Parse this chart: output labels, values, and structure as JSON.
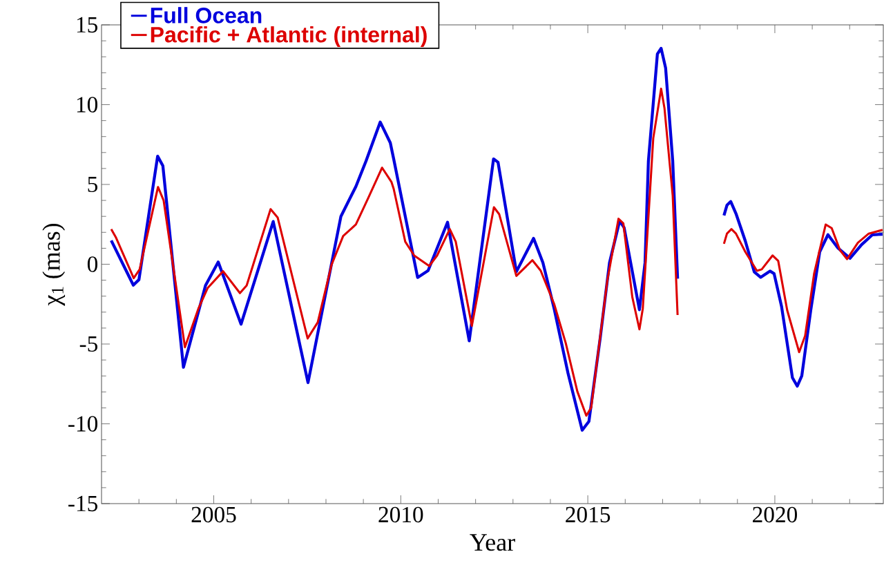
{
  "chart_data": {
    "type": "line",
    "xlabel": "Year",
    "ylabel": "χ$_{1}$ (mas)",
    "xlim": [
      2002,
      2022.9
    ],
    "ylim": [
      -15,
      15
    ],
    "xticks": [
      {
        "value": 2003,
        "label": null
      },
      {
        "value": 2004,
        "label": null
      },
      2005,
      {
        "value": 2006,
        "label": null
      },
      {
        "value": 2007,
        "label": null
      },
      {
        "value": 2008,
        "label": null
      },
      {
        "value": 2009,
        "label": null
      },
      2010,
      {
        "value": 2011,
        "label": null
      },
      {
        "value": 2012,
        "label": null
      },
      {
        "value": 2013,
        "label": null
      },
      {
        "value": 2014,
        "label": null
      },
      2015,
      {
        "value": 2016,
        "label": null
      },
      {
        "value": 2017,
        "label": null
      },
      {
        "value": 2018,
        "label": null
      },
      {
        "value": 2019,
        "label": null
      },
      2020,
      {
        "value": 2021,
        "label": null
      },
      {
        "value": 2022,
        "label": null
      }
    ],
    "yticks": [
      -15,
      {
        "value": -14,
        "label": null
      },
      {
        "value": -13,
        "label": null
      },
      {
        "value": -12,
        "label": null
      },
      {
        "value": -11,
        "label": null
      },
      -10,
      {
        "value": -9,
        "label": null
      },
      {
        "value": -8,
        "label": null
      },
      {
        "value": -7,
        "label": null
      },
      {
        "value": -6,
        "label": null
      },
      -5,
      {
        "value": -4,
        "label": null
      },
      {
        "value": -3,
        "label": null
      },
      {
        "value": -2,
        "label": null
      },
      {
        "value": -1,
        "label": null
      },
      0,
      {
        "value": 1,
        "label": null
      },
      {
        "value": 2,
        "label": null
      },
      {
        "value": 3,
        "label": null
      },
      {
        "value": 4,
        "label": null
      },
      5,
      {
        "value": 6,
        "label": null
      },
      {
        "value": 7,
        "label": null
      },
      {
        "value": 8,
        "label": null
      },
      {
        "value": 9,
        "label": null
      },
      10,
      {
        "value": 11,
        "label": null
      },
      {
        "value": 12,
        "label": null
      },
      {
        "value": 13,
        "label": null
      },
      {
        "value": 14,
        "label": null
      },
      15
    ],
    "legend": "top left",
    "series": [
      {
        "name": "Full Ocean",
        "color": "#0000dd",
        "x": [
          2002.26,
          2002.85,
          2003.0,
          2003.5,
          2003.64,
          2004.19,
          2004.78,
          2005.12,
          2005.73,
          2006.59,
          2007.52,
          2008.4,
          2008.8,
          2009.07,
          2009.45,
          2009.72,
          2009.81,
          2010.45,
          2010.73,
          2011.25,
          2011.83,
          2012.48,
          2012.6,
          2013.09,
          2013.55,
          2013.8,
          2014.1,
          2014.47,
          2014.85,
          2015.03,
          2015.33,
          2015.58,
          2015.85,
          2015.97,
          2016.38,
          2016.53,
          2016.62,
          2016.86,
          2016.96,
          2017.08,
          2017.27,
          2017.4,
          2018.0,
          2018.64,
          2018.72,
          2018.82,
          2018.96,
          2019.21,
          2019.45,
          2019.62,
          2019.87,
          2019.98,
          2020.18,
          2020.47,
          2020.6,
          2020.72,
          2020.96,
          2021.2,
          2021.42,
          2021.69,
          2022.01,
          2022.32,
          2022.61,
          2022.88
        ],
        "values": [
          1.49,
          -1.31,
          -0.97,
          6.77,
          6.17,
          -6.46,
          -1.33,
          0.14,
          -3.76,
          2.68,
          -7.42,
          3.0,
          4.87,
          6.46,
          8.91,
          7.61,
          6.6,
          -0.83,
          -0.4,
          2.63,
          -4.8,
          6.6,
          6.39,
          -0.47,
          1.62,
          0.1,
          -2.78,
          -6.82,
          -10.4,
          -9.85,
          -4.65,
          0.1,
          2.71,
          2.3,
          -2.85,
          0.1,
          6.46,
          13.17,
          13.53,
          12.3,
          6.47,
          -0.9,
          null,
          3.06,
          3.7,
          3.93,
          3.18,
          1.46,
          -0.48,
          -0.82,
          -0.43,
          -0.59,
          -2.65,
          -7.11,
          -7.64,
          -7.0,
          -2.88,
          0.78,
          1.85,
          1.01,
          0.37,
          1.23,
          1.85,
          1.88
        ]
      },
      {
        "name": "Pacific + Atlantic (internal)",
        "color": "#dd0000",
        "x": [
          2002.26,
          2002.38,
          2002.86,
          2003.02,
          2003.51,
          2003.66,
          2004.23,
          2004.59,
          2004.84,
          2005.25,
          2005.7,
          2005.88,
          2006.52,
          2006.71,
          2007.51,
          2007.78,
          2008.15,
          2008.46,
          2008.8,
          2009.13,
          2009.5,
          2009.75,
          2009.81,
          2010.12,
          2010.36,
          2010.76,
          2010.97,
          2011.31,
          2011.47,
          2011.9,
          2012.49,
          2012.63,
          2013.09,
          2013.52,
          2013.74,
          2014.1,
          2014.41,
          2014.72,
          2014.96,
          2015.09,
          2015.27,
          2015.52,
          2015.82,
          2015.95,
          2016.19,
          2016.38,
          2016.47,
          2016.75,
          2016.96,
          2017.05,
          2017.27,
          2017.4,
          2018.0,
          2018.64,
          2018.72,
          2018.84,
          2018.96,
          2019.21,
          2019.52,
          2019.65,
          2019.94,
          2020.09,
          2020.33,
          2020.65,
          2020.81,
          2021.05,
          2021.36,
          2021.52,
          2021.74,
          2021.93,
          2022.22,
          2022.51,
          2022.88
        ],
        "values": [
          2.2,
          1.7,
          -0.87,
          -0.32,
          4.84,
          4.0,
          -5.2,
          -2.78,
          -1.48,
          -0.44,
          -1.81,
          -1.33,
          3.45,
          2.92,
          -4.65,
          -3.64,
          -0.03,
          1.77,
          2.49,
          4.15,
          6.05,
          5.16,
          4.73,
          1.41,
          0.54,
          -0.11,
          0.54,
          2.2,
          1.41,
          -3.86,
          3.57,
          3.14,
          -0.73,
          0.25,
          -0.4,
          -2.49,
          -4.94,
          -7.97,
          -9.49,
          -8.98,
          -5.66,
          -1.05,
          2.85,
          2.56,
          -2.06,
          -4.08,
          -2.78,
          7.9,
          11.0,
          9.77,
          4.29,
          -3.18,
          null,
          1.28,
          1.92,
          2.2,
          1.92,
          0.78,
          -0.41,
          -0.32,
          0.55,
          0.21,
          -2.88,
          -5.51,
          -4.48,
          -0.59,
          2.49,
          2.26,
          0.89,
          0.32,
          1.35,
          1.92,
          2.15
        ]
      }
    ]
  }
}
